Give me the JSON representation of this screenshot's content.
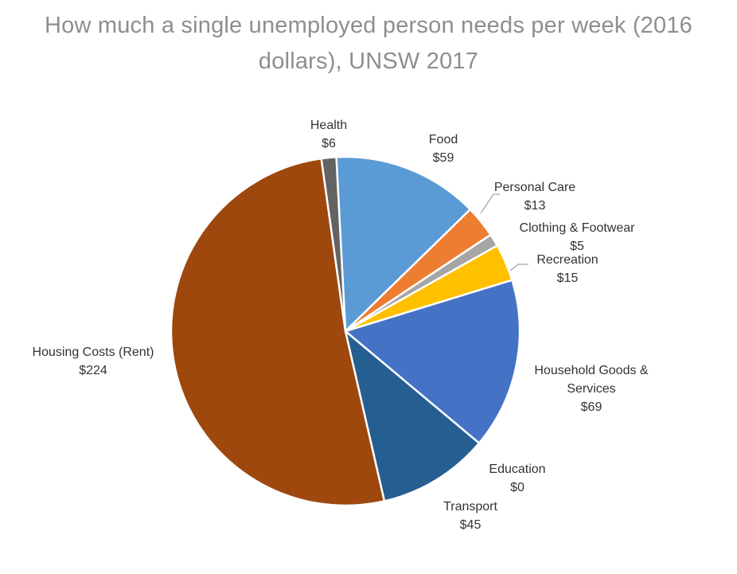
{
  "title_line1": "How much a single unemployed person needs per week (2016",
  "title_line2": "dollars), UNSW 2017",
  "chart_data": {
    "type": "pie",
    "title": "How much a single unemployed person needs per week (2016 dollars), UNSW 2017",
    "slices": [
      {
        "label": "Food",
        "value": 59,
        "value_label": "$59",
        "color": "#5b9bd5"
      },
      {
        "label": "Personal Care",
        "value": 13,
        "value_label": "$13",
        "color": "#ed7d31"
      },
      {
        "label": "Clothing & Footwear",
        "value": 5,
        "value_label": "$5",
        "color": "#a5a5a5"
      },
      {
        "label": "Recreation",
        "value": 15,
        "value_label": "$15",
        "color": "#ffc000"
      },
      {
        "label": "Household Goods &",
        "label_line2": "Services",
        "value": 69,
        "value_label": "$69",
        "color": "#4472c4"
      },
      {
        "label": "Education",
        "value": 0,
        "value_label": "$0",
        "color": "#70ad47"
      },
      {
        "label": "Transport",
        "value": 45,
        "value_label": "$45",
        "color": "#255e91"
      },
      {
        "label": "Housing Costs (Rent)",
        "value": 224,
        "value_label": "$224",
        "color": "#9e480e"
      },
      {
        "label": "Health",
        "value": 6,
        "value_label": "$6",
        "color": "#636363"
      }
    ]
  }
}
